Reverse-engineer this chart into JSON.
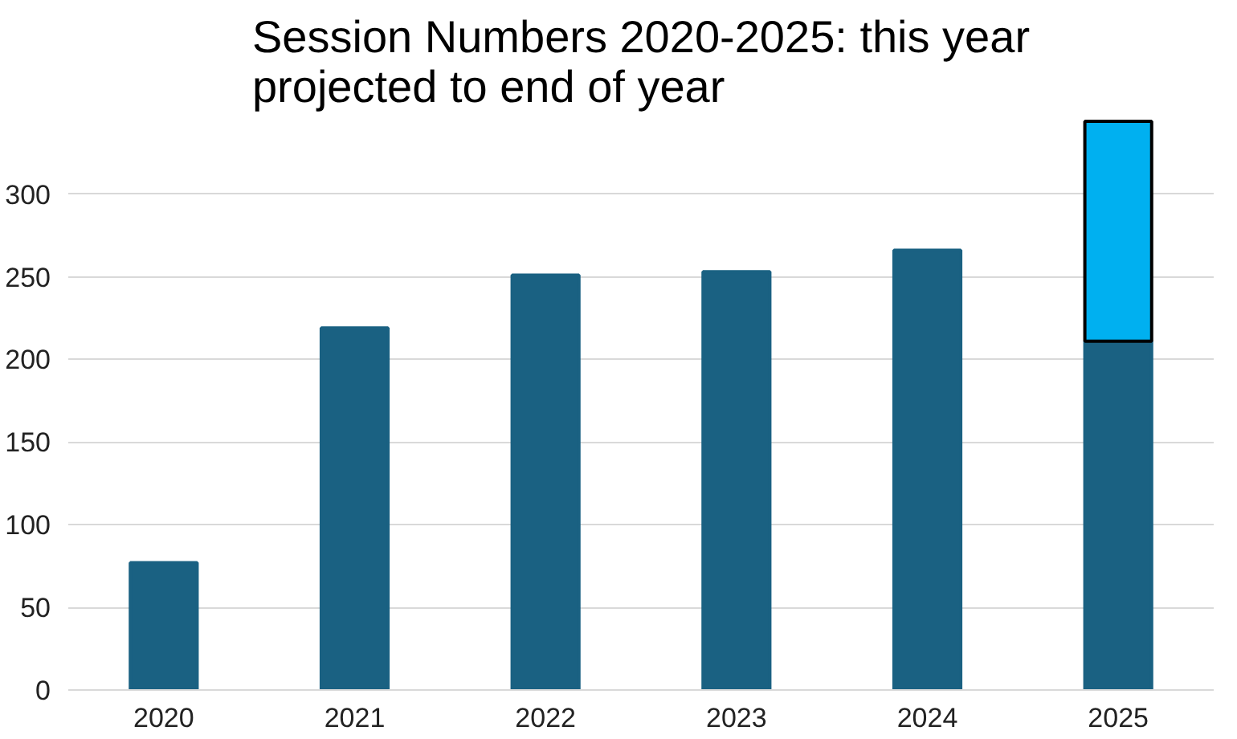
{
  "chart_data": {
    "type": "bar",
    "title": "Session Numbers 2020-2025: this year projected to end of year",
    "categories": [
      "2020",
      "2021",
      "2022",
      "2023",
      "2024",
      "2025"
    ],
    "stacked": true,
    "series": [
      {
        "color": "#1a6182",
        "values": [
          77,
          219,
          251,
          253,
          266,
          211
        ]
      },
      {
        "color": "#00b0f0",
        "values": [
          null,
          null,
          null,
          null,
          null,
          133
        ]
      }
    ],
    "ylim": [
      0,
      345
    ],
    "yticks": [
      0,
      50,
      100,
      150,
      200,
      250,
      300
    ],
    "grid": "y"
  }
}
